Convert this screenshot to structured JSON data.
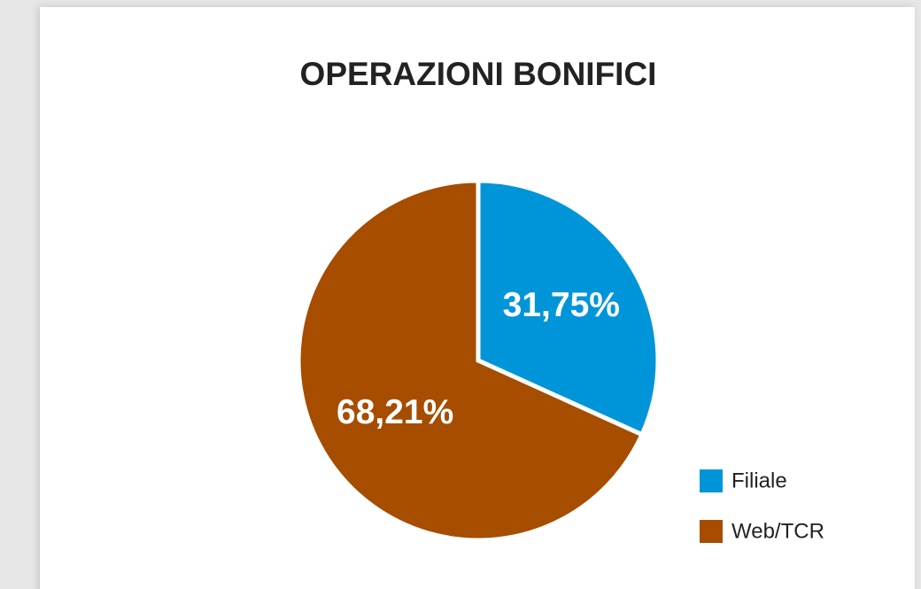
{
  "chart_data": {
    "type": "pie",
    "title": "OPERAZIONI BONIFICI",
    "categories": [
      "Filiale",
      "Web/TCR"
    ],
    "values": [
      31.75,
      68.21
    ],
    "value_labels": [
      "31,75%",
      "68,21%"
    ],
    "colors": [
      "#0095d9",
      "#a64d00"
    ],
    "legend": "right"
  }
}
